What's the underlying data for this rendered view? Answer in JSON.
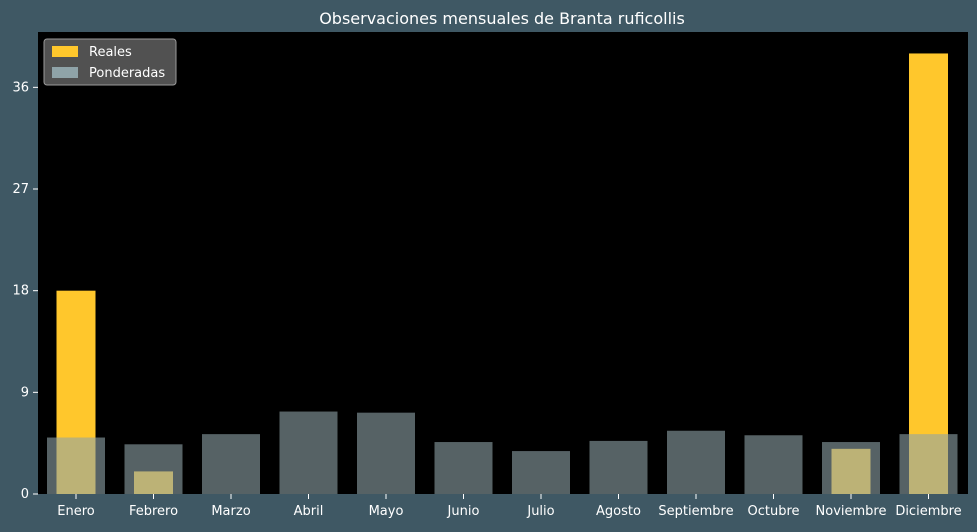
{
  "chart_data": {
    "type": "bar",
    "title": "Observaciones mensuales de Branta ruficollis",
    "xlabel": "",
    "ylabel": "",
    "categories": [
      "Enero",
      "Febrero",
      "Marzo",
      "Abril",
      "Mayo",
      "Junio",
      "Julio",
      "Agosto",
      "Septiembre",
      "Octubre",
      "Noviembre",
      "Diciembre"
    ],
    "series": [
      {
        "name": "Reales",
        "color": "#ffc72c",
        "values": [
          18,
          2,
          0,
          0,
          0,
          0,
          0,
          0,
          0,
          0,
          4,
          39
        ]
      },
      {
        "name": "Ponderadas",
        "color": "#8fa3a8",
        "opacity": 0.6,
        "values": [
          5.0,
          4.4,
          5.3,
          7.3,
          7.2,
          4.6,
          3.8,
          4.7,
          5.6,
          5.2,
          4.6,
          5.3
        ]
      }
    ],
    "yticks": [
      0,
      9,
      18,
      27,
      36
    ],
    "ylim": [
      0,
      40.9
    ],
    "grid": false,
    "legend_position": "top-left",
    "colors": {
      "page_background": "#3f5864",
      "plot_background": "#000000",
      "text": "#ffffff"
    }
  }
}
